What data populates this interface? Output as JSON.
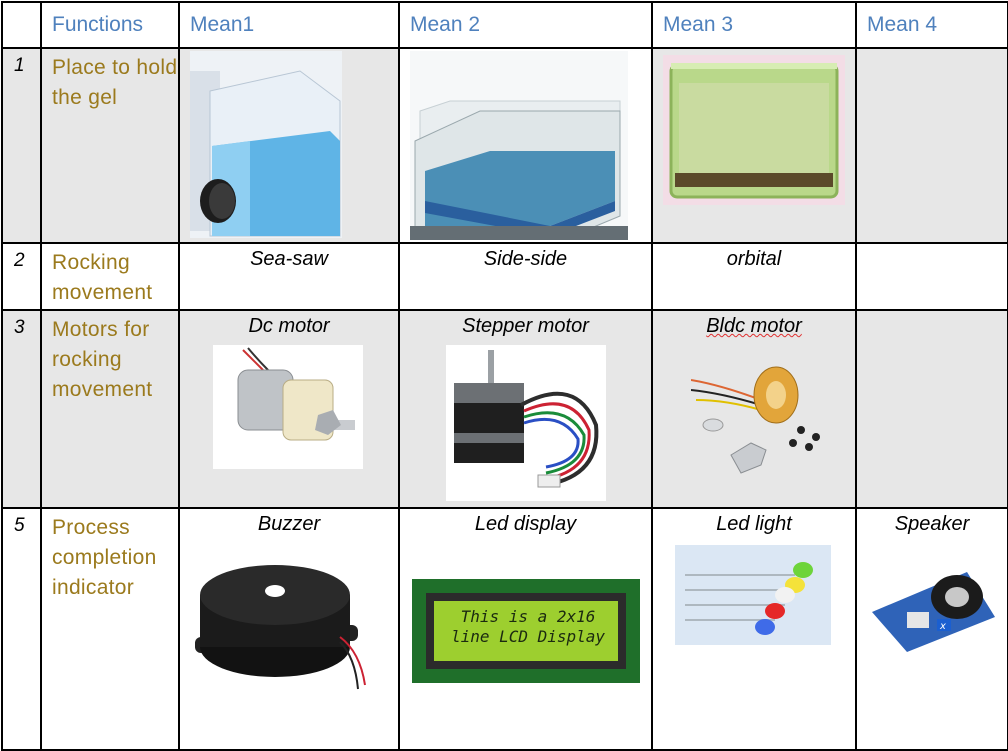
{
  "header": {
    "col0": "",
    "functions": "Functions",
    "mean1": "Mean1",
    "mean2": "Mean 2",
    "mean3": "Mean 3",
    "mean4": "Mean 4"
  },
  "rows": [
    {
      "num": "1",
      "function": "Place to hold the gel",
      "means": [
        "",
        "",
        "",
        ""
      ],
      "images": [
        "gel-tray-blue-icon",
        "gel-tray-clear-icon",
        "gel-tray-green-icon",
        ""
      ]
    },
    {
      "num": "2",
      "function": "Rocking movement",
      "means": [
        "Sea-saw",
        "Side-side",
        "orbital",
        ""
      ]
    },
    {
      "num": "3",
      "function": "Motors for rocking movement",
      "means": [
        "Dc motor",
        "Stepper motor",
        "Bldc motor",
        ""
      ],
      "images": [
        "dc-motor-icon",
        "stepper-motor-icon",
        "bldc-motor-icon",
        ""
      ]
    },
    {
      "num": "5",
      "function": "Process completion indicator",
      "means": [
        "Buzzer",
        "Led display",
        "Led light",
        "Speaker"
      ],
      "images": [
        "buzzer-icon",
        "lcd-display-icon",
        "led-light-icon",
        "speaker-module-icon"
      ]
    }
  ],
  "lcd": {
    "line1": "This is a 2x16",
    "line2": "line LCD Display"
  }
}
